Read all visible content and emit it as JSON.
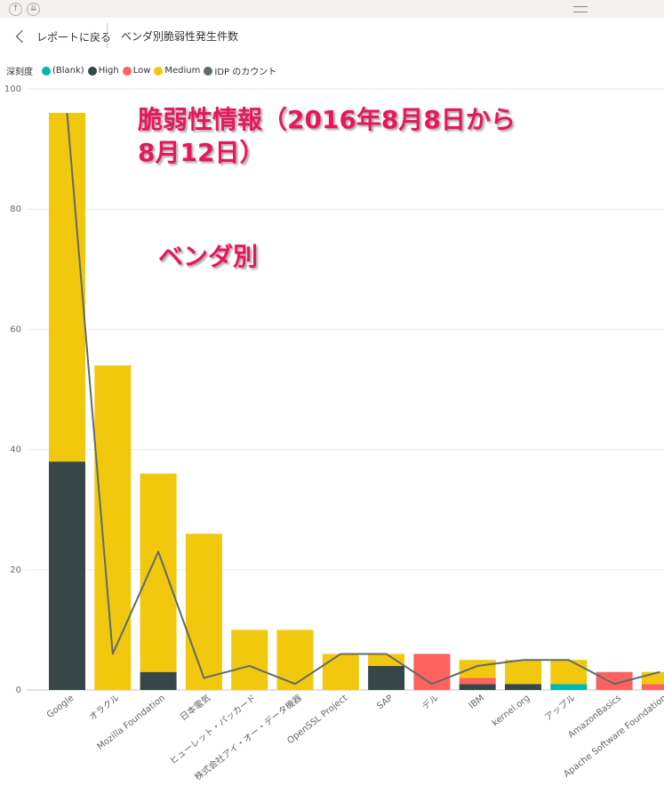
{
  "header": {
    "back_label": "レポートに戻る",
    "title": "ベンダ別脆弱性発生件数"
  },
  "legend": {
    "title": "深刻度",
    "items": [
      {
        "label": "(Blank)",
        "color": "#01b8aa"
      },
      {
        "label": "High",
        "color": "#374649"
      },
      {
        "label": "Low",
        "color": "#fd625e"
      },
      {
        "label": "Medium",
        "color": "#f2c80f"
      },
      {
        "label": "IDP のカウント",
        "color": "#5f6b6d"
      }
    ]
  },
  "overlay": {
    "title": "脆弱性情報（2016年8月8日から\n8月12日）",
    "subtitle": "ベンダ別"
  },
  "chart_data": {
    "type": "bar",
    "stacked": true,
    "categories": [
      "Google",
      "オラクル",
      "Mozilla Foundation",
      "日本電気",
      "ヒューレット・パッカード",
      "株式会社アイ・オー・データ機器",
      "OpenSSL Project",
      "SAP",
      "デル",
      "IBM",
      "kernel.org",
      "アップル",
      "AmazonBasics",
      "Apache Software Foundation"
    ],
    "series": [
      {
        "name": "(Blank)",
        "color": "#01b8aa",
        "values": [
          0,
          0,
          0,
          0,
          0,
          0,
          0,
          0,
          0,
          0,
          0,
          1,
          0,
          0
        ]
      },
      {
        "name": "High",
        "color": "#374649",
        "values": [
          38,
          0,
          3,
          0,
          0,
          0,
          0,
          4,
          0,
          1,
          1,
          0,
          0,
          0
        ]
      },
      {
        "name": "Low",
        "color": "#fd625e",
        "values": [
          0,
          0,
          0,
          0,
          0,
          0,
          0,
          0,
          6,
          1,
          0,
          0,
          3,
          1
        ]
      },
      {
        "name": "Medium",
        "color": "#f2c80f",
        "values": [
          58,
          54,
          33,
          26,
          10,
          10,
          6,
          2,
          0,
          3,
          4,
          4,
          0,
          2
        ]
      }
    ],
    "line": {
      "name": "IDP のカウント",
      "color": "#5f6b6d",
      "values": [
        96,
        6,
        23,
        2,
        4,
        1,
        6,
        6,
        1,
        4,
        5,
        5,
        1,
        3
      ]
    },
    "ylim": [
      0,
      100
    ],
    "yticks": [
      0,
      20,
      40,
      60,
      80,
      100
    ],
    "grid": true
  }
}
